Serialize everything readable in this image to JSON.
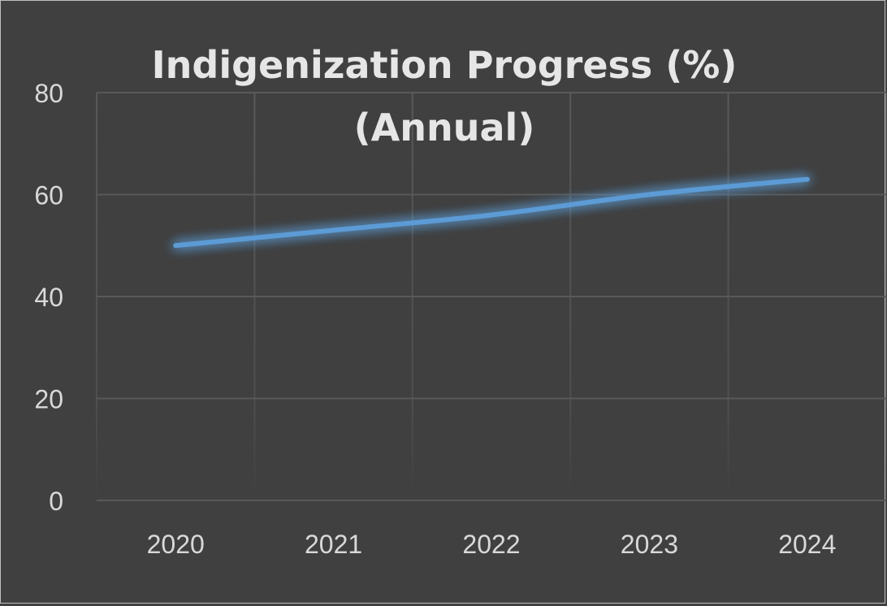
{
  "chart_data": {
    "type": "line",
    "title_line1": "Indigenization Progress (%)",
    "title_line2": "(Annual)",
    "categories": [
      "2020",
      "2021",
      "2022",
      "2023",
      "2024"
    ],
    "series": [
      {
        "values": [
          50,
          53,
          56,
          60,
          63
        ],
        "color": "#5b9bd5"
      }
    ],
    "y_ticks": [
      "0",
      "20",
      "40",
      "60",
      "80"
    ],
    "ylim": [
      0,
      80
    ],
    "grid": true,
    "background_color": "#404040",
    "grid_color": "#595959"
  }
}
